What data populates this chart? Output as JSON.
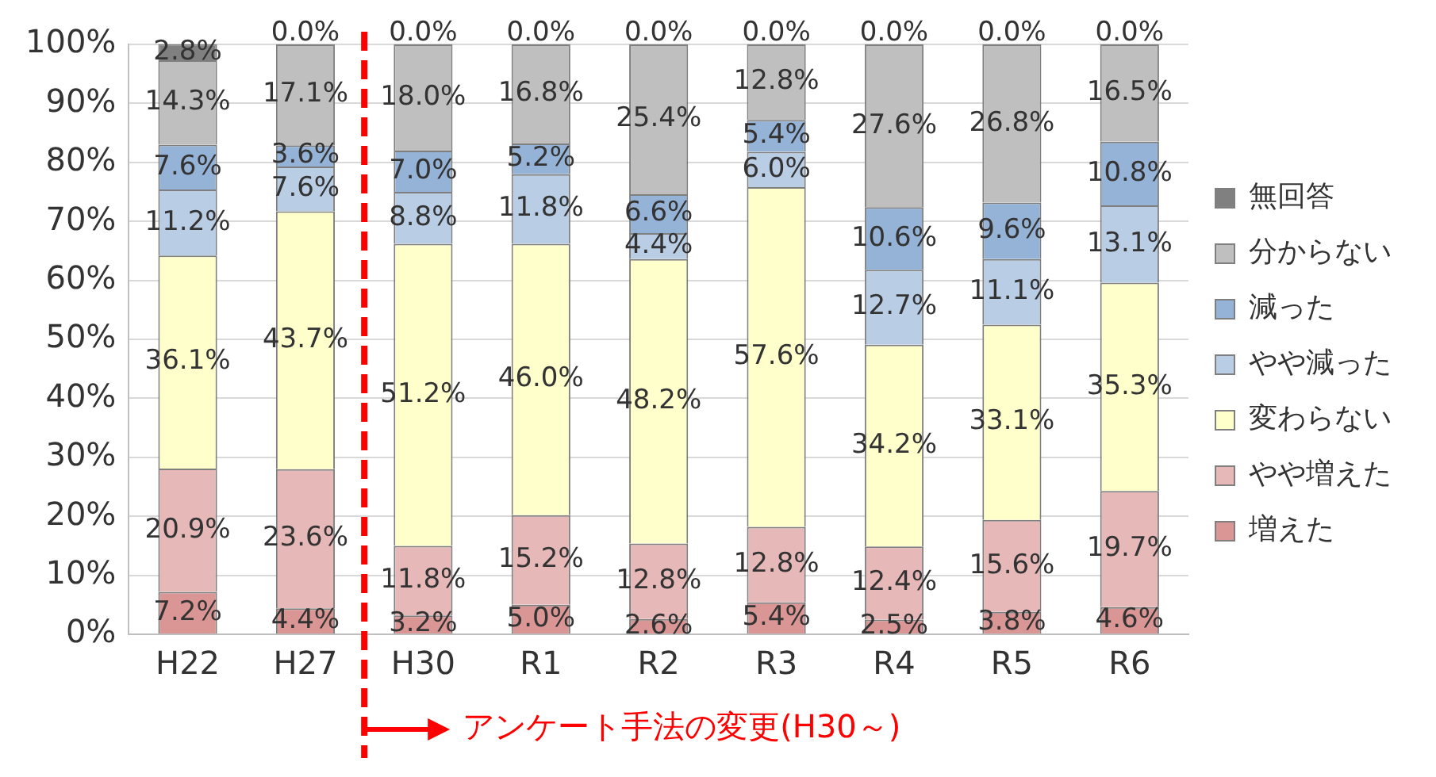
{
  "chart_data": {
    "type": "bar",
    "stacked": true,
    "categories": [
      "H22",
      "H27",
      "H30",
      "R1",
      "R2",
      "R3",
      "R4",
      "R5",
      "R6"
    ],
    "series": [
      {
        "name": "増えた",
        "color": "#da9694",
        "values": [
          7.2,
          4.4,
          3.2,
          5.0,
          2.6,
          5.4,
          2.5,
          3.8,
          4.6
        ],
        "value_labels": [
          "7.2%",
          "4.4%",
          "3.2%",
          "5.0%",
          "2.6%",
          "5.4%",
          "2.5%",
          "3.8%",
          "4.6%"
        ]
      },
      {
        "name": "やや増えた",
        "color": "#e6b9b8",
        "values": [
          20.9,
          23.6,
          11.8,
          15.2,
          12.8,
          12.8,
          12.4,
          15.6,
          19.7
        ],
        "value_labels": [
          "20.9%",
          "23.6%",
          "11.8%",
          "15.2%",
          "12.8%",
          "12.8%",
          "12.4%",
          "15.6%",
          "19.7%"
        ]
      },
      {
        "name": "変わらない",
        "color": "#ffffcc",
        "values": [
          36.1,
          43.7,
          51.2,
          46.0,
          48.2,
          57.6,
          34.2,
          33.1,
          35.3
        ],
        "value_labels": [
          "36.1%",
          "43.7%",
          "51.2%",
          "46.0%",
          "48.2%",
          "57.6%",
          "34.2%",
          "33.1%",
          "35.3%"
        ]
      },
      {
        "name": "やや減った",
        "color": "#b9cde5",
        "values": [
          11.2,
          7.6,
          8.8,
          11.8,
          4.4,
          6.0,
          12.7,
          11.1,
          13.1
        ],
        "value_labels": [
          "11.2%",
          "7.6%",
          "8.8%",
          "11.8%",
          "4.4%",
          "6.0%",
          "12.7%",
          "11.1%",
          "13.1%"
        ]
      },
      {
        "name": "減った",
        "color": "#95b3d7",
        "values": [
          7.6,
          3.6,
          7.0,
          5.2,
          6.6,
          5.4,
          10.6,
          9.6,
          10.8
        ],
        "value_labels": [
          "7.6%",
          "3.6%",
          "7.0%",
          "5.2%",
          "6.6%",
          "5.4%",
          "10.6%",
          "9.6%",
          "10.8%"
        ]
      },
      {
        "name": "分からない",
        "color": "#bfbfbf",
        "values": [
          14.3,
          17.1,
          18.0,
          16.8,
          25.4,
          12.8,
          27.6,
          26.8,
          16.5
        ],
        "value_labels": [
          "14.3%",
          "17.1%",
          "18.0%",
          "16.8%",
          "25.4%",
          "12.8%",
          "27.6%",
          "26.8%",
          "16.5%"
        ]
      },
      {
        "name": "無回答",
        "color": "#808080",
        "values": [
          2.8,
          0,
          0,
          0,
          0,
          0,
          0,
          0,
          0
        ],
        "value_labels": [
          "2.8%",
          "0.0%",
          "0.0%",
          "0.0%",
          "0.0%",
          "0.0%",
          "0.0%",
          "0.0%",
          "0.0%"
        ]
      }
    ],
    "ylim": [
      0,
      100
    ],
    "yticks": [
      {
        "value": 0,
        "label": "0%"
      },
      {
        "value": 10,
        "label": "10%"
      },
      {
        "value": 20,
        "label": "20%"
      },
      {
        "value": 30,
        "label": "30%"
      },
      {
        "value": 40,
        "label": "40%"
      },
      {
        "value": 50,
        "label": "50%"
      },
      {
        "value": 60,
        "label": "60%"
      },
      {
        "value": 70,
        "label": "70%"
      },
      {
        "value": 80,
        "label": "80%"
      },
      {
        "value": 90,
        "label": "90%"
      },
      {
        "value": 100,
        "label": "100%"
      }
    ],
    "grid": "y",
    "legend": "right",
    "ref_lines": [
      {
        "axis": "x",
        "value": "H30",
        "label": "アンケート手法の変更(H30～)",
        "color": "#ff0000",
        "line_style": "dashed"
      }
    ]
  }
}
